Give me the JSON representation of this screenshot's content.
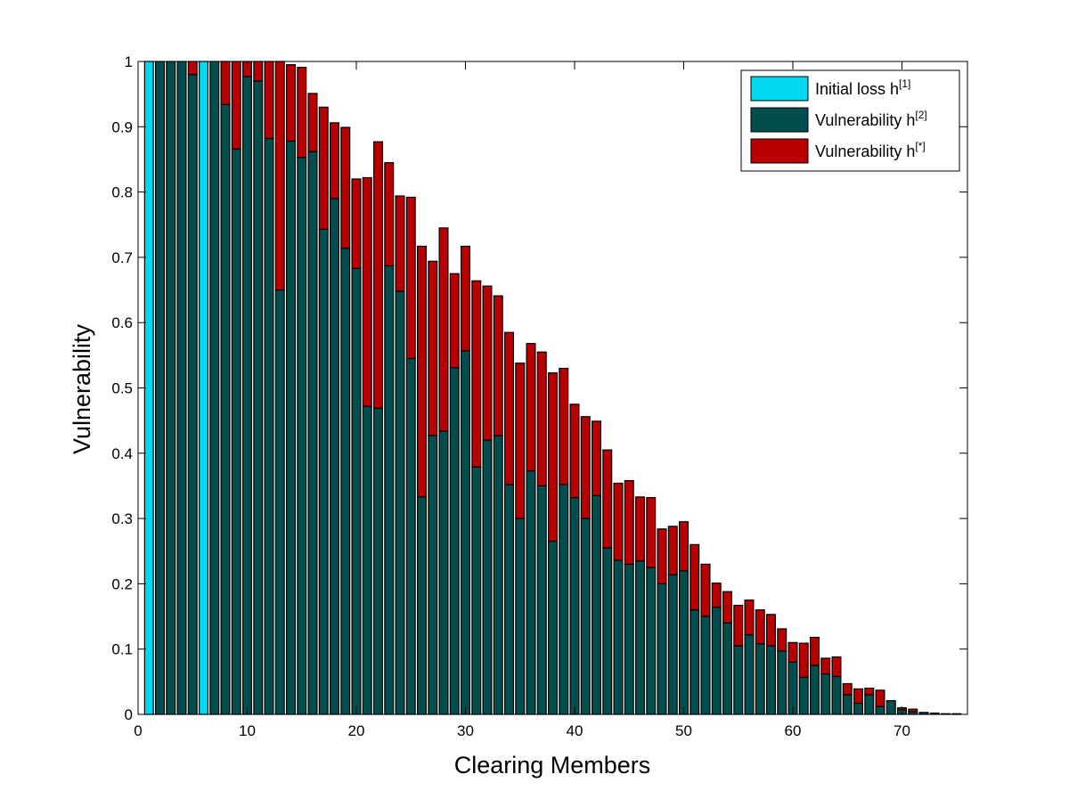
{
  "chart_data": {
    "type": "bar",
    "stacked": true,
    "xlabel": "Clearing Members",
    "ylabel": "Vulnerability",
    "xlim": [
      0,
      76
    ],
    "ylim": [
      0,
      1
    ],
    "xticks": [
      0,
      10,
      20,
      30,
      40,
      50,
      60,
      70
    ],
    "yticks": [
      0,
      0.1,
      0.2,
      0.3,
      0.4,
      0.5,
      0.6,
      0.7,
      0.8,
      0.9,
      1
    ],
    "grid": false,
    "legend_position": "top-right",
    "x": [
      1,
      2,
      3,
      4,
      5,
      6,
      7,
      8,
      9,
      10,
      11,
      12,
      13,
      14,
      15,
      16,
      17,
      18,
      19,
      20,
      21,
      22,
      23,
      24,
      25,
      26,
      27,
      28,
      29,
      30,
      31,
      32,
      33,
      34,
      35,
      36,
      37,
      38,
      39,
      40,
      41,
      42,
      43,
      44,
      45,
      46,
      47,
      48,
      49,
      50,
      51,
      52,
      53,
      54,
      55,
      56,
      57,
      58,
      59,
      60,
      61,
      62,
      63,
      64,
      65,
      66,
      67,
      68,
      69,
      70,
      71,
      72,
      73,
      74,
      75
    ],
    "series": [
      {
        "name": "Initial loss h",
        "legend_sup": "[1]",
        "color": "#00d8f0",
        "values": [
          1,
          0,
          0,
          0,
          0,
          1,
          0,
          0,
          0,
          0,
          0,
          0,
          0,
          0,
          0,
          0,
          0,
          0,
          0,
          0,
          0,
          0,
          0,
          0,
          0,
          0,
          0,
          0,
          0,
          0,
          0,
          0,
          0,
          0,
          0,
          0,
          0,
          0,
          0,
          0,
          0,
          0,
          0,
          0,
          0,
          0,
          0,
          0,
          0,
          0,
          0,
          0,
          0,
          0,
          0,
          0,
          0,
          0,
          0,
          0,
          0,
          0,
          0,
          0,
          0,
          0,
          0,
          0,
          0,
          0,
          0,
          0,
          0,
          0,
          0
        ]
      },
      {
        "name": "Vulnerability h",
        "legend_sup": "[2]",
        "color": "#024d4d",
        "values": [
          0,
          1,
          1,
          1,
          0.98,
          0,
          1,
          0.934,
          0.866,
          0.977,
          0.97,
          0.882,
          0.65,
          0.878,
          0.853,
          0.862,
          0.743,
          0.79,
          0.714,
          0.683,
          0.472,
          0.469,
          0.687,
          0.648,
          0.545,
          0.333,
          0.427,
          0.434,
          0.531,
          0.557,
          0.379,
          0.42,
          0.427,
          0.352,
          0.3,
          0.373,
          0.35,
          0.265,
          0.352,
          0.332,
          0.3,
          0.335,
          0.255,
          0.236,
          0.23,
          0.235,
          0.225,
          0.2,
          0.214,
          0.22,
          0.16,
          0.15,
          0.164,
          0.14,
          0.105,
          0.122,
          0.108,
          0.105,
          0.097,
          0.08,
          0.057,
          0.075,
          0.062,
          0.058,
          0.03,
          0.017,
          0.03,
          0.012,
          0.021,
          0.007,
          0.004,
          0.003,
          0.002,
          0.001,
          0.001
        ]
      },
      {
        "name": "Vulnerability h",
        "legend_sup": "[*]",
        "color": "#b80000",
        "values": [
          0,
          0,
          0,
          0,
          0.02,
          0,
          0,
          0.066,
          0.134,
          0.023,
          0.03,
          0.118,
          0.35,
          0.117,
          0.138,
          0.089,
          0.187,
          0.116,
          0.185,
          0.137,
          0.35,
          0.408,
          0.158,
          0.146,
          0.247,
          0.384,
          0.267,
          0.311,
          0.144,
          0.16,
          0.285,
          0.236,
          0.214,
          0.233,
          0.238,
          0.195,
          0.205,
          0.258,
          0.178,
          0.143,
          0.156,
          0.114,
          0.15,
          0.118,
          0.128,
          0.098,
          0.107,
          0.084,
          0.074,
          0.075,
          0.1,
          0.08,
          0.037,
          0.048,
          0.062,
          0.053,
          0.052,
          0.048,
          0.034,
          0.03,
          0.052,
          0.043,
          0.024,
          0.03,
          0.017,
          0.022,
          0.01,
          0.025,
          0,
          0.003,
          0.004,
          0,
          0,
          0,
          0
        ]
      }
    ]
  }
}
